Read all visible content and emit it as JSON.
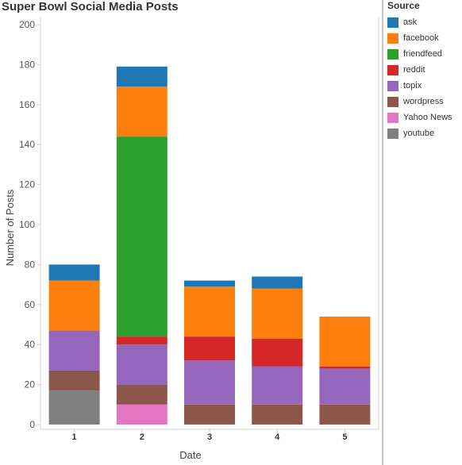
{
  "chart_data": {
    "type": "bar",
    "stacked": true,
    "title": "Super Bowl Social Media Posts",
    "xlabel": "Date",
    "ylabel": "Number of Posts",
    "categories": [
      "1",
      "2",
      "3",
      "4",
      "5"
    ],
    "ylim": [
      0,
      200
    ],
    "yticks": [
      0,
      20,
      40,
      60,
      80,
      100,
      120,
      140,
      160,
      180,
      200
    ],
    "grid": false,
    "legend_title": "Source",
    "legend_position": "right",
    "series": [
      {
        "name": "youtube",
        "color": "#7f7f7f",
        "values": [
          17,
          0,
          0,
          0,
          0
        ]
      },
      {
        "name": "Yahoo News",
        "color": "#e377c2",
        "values": [
          0,
          10,
          0,
          0,
          0
        ]
      },
      {
        "name": "wordpress",
        "color": "#8c564b",
        "values": [
          10,
          10,
          10,
          10,
          10
        ]
      },
      {
        "name": "topix",
        "color": "#9467bd",
        "values": [
          20,
          20,
          22,
          19,
          18
        ]
      },
      {
        "name": "reddit",
        "color": "#d62728",
        "values": [
          0,
          4,
          12,
          14,
          1
        ]
      },
      {
        "name": "friendfeed",
        "color": "#2ca02c",
        "values": [
          0,
          100,
          0,
          0,
          0
        ]
      },
      {
        "name": "facebook",
        "color": "#ff7f0e",
        "values": [
          25,
          25,
          25,
          25,
          25
        ]
      },
      {
        "name": "ask",
        "color": "#1f77b4",
        "values": [
          8,
          10,
          3,
          6,
          0
        ]
      }
    ],
    "legend_order": [
      "ask",
      "facebook",
      "friendfeed",
      "reddit",
      "topix",
      "wordpress",
      "Yahoo News",
      "youtube"
    ]
  }
}
